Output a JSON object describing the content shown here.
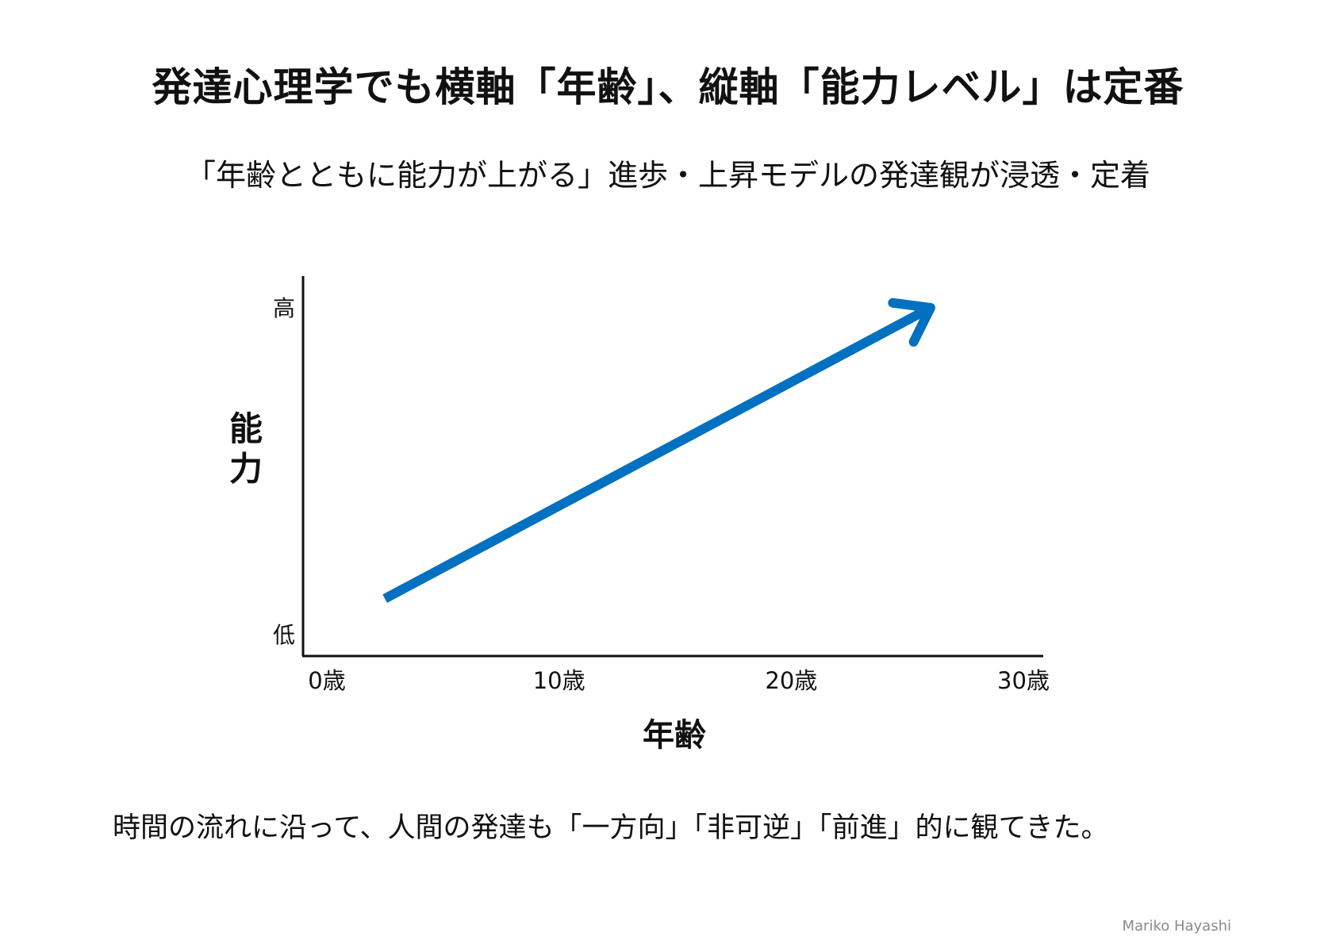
{
  "title": "発達心理学でも横軸「年齢」、縦軸「能力レベル」は定番",
  "subtitle": "「年齢とともに能力が上がる」進歩・上昇モデルの発達観が浸透・定着",
  "chart_data": {
    "type": "line",
    "xlabel": "年齢",
    "ylabel": "能力",
    "x_ticks": [
      "0歳",
      "10歳",
      "20歳",
      "30歳"
    ],
    "y_ticks": [
      "低",
      "高"
    ],
    "xlim": [
      0,
      30
    ],
    "ylim": [
      0,
      1
    ],
    "series": [
      {
        "x": [
          2.5,
          26.0
        ],
        "y": [
          0.11,
          1.0
        ],
        "arrow": true
      }
    ],
    "line_color": "#0070c0",
    "grid": false
  },
  "footer_text": "時間の流れに沿って、人間の発達も「一方向」「非可逆」「前進」的に観てきた。",
  "author": "Mariko Hayashi"
}
